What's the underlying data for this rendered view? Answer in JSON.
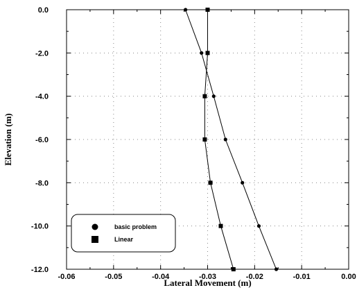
{
  "chart_data": {
    "type": "line",
    "xlabel": "Lateral Movement (m)",
    "ylabel": "Elevation (m)",
    "xlim": [
      -0.06,
      0.0
    ],
    "ylim": [
      -12.0,
      0.0
    ],
    "x_ticks": [
      -0.06,
      -0.05,
      -0.04,
      -0.03,
      -0.02,
      -0.01,
      0.0
    ],
    "x_tick_labels": [
      "-0.06",
      "-0.05",
      "-0.04",
      "-0.03",
      "-0.02",
      "-0.01",
      "0.00"
    ],
    "y_ticks": [
      0,
      -2,
      -4,
      -6,
      -8,
      -10,
      -12
    ],
    "y_tick_labels": [
      "0.0",
      "-2.0",
      "-4.0",
      "-6.0",
      "-8.0",
      "-10.0",
      "-12.0"
    ],
    "grid": true,
    "legend_position": "bottom-left",
    "series": [
      {
        "name": "basic problem",
        "marker": "circle",
        "color": "#000000",
        "points": [
          {
            "x": -0.0347,
            "y": 0.0
          },
          {
            "x": -0.0313,
            "y": -2.0
          },
          {
            "x": -0.0287,
            "y": -4.0
          },
          {
            "x": -0.0262,
            "y": -6.0
          },
          {
            "x": -0.0226,
            "y": -8.0
          },
          {
            "x": -0.0191,
            "y": -10.0
          },
          {
            "x": -0.0154,
            "y": -12.0
          }
        ]
      },
      {
        "name": "Linear",
        "marker": "square",
        "color": "#000000",
        "points": [
          {
            "x": -0.03,
            "y": 0.0
          },
          {
            "x": -0.03,
            "y": -2.0
          },
          {
            "x": -0.0306,
            "y": -4.0
          },
          {
            "x": -0.0306,
            "y": -6.0
          },
          {
            "x": -0.0294,
            "y": -8.0
          },
          {
            "x": -0.0272,
            "y": -10.0
          },
          {
            "x": -0.0245,
            "y": -12.0
          }
        ]
      }
    ]
  }
}
